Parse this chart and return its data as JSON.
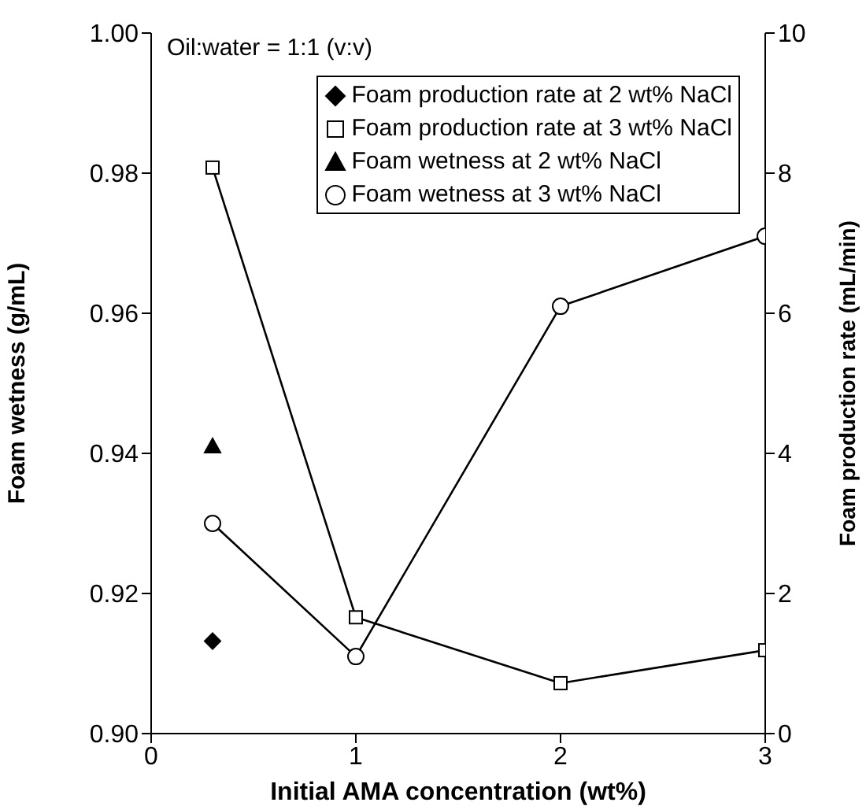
{
  "chart_data": {
    "type": "scatter",
    "xlabel": "Initial AMA concentration (wt%)",
    "ylabel": "Foam wetness (g/mL)",
    "y2label": "Foam production rate (mL/min)",
    "annotations": [
      "Oil:water = 1:1 (v:v)"
    ],
    "xlim": [
      0,
      3
    ],
    "xticks": [
      0,
      1,
      2,
      3
    ],
    "ylim": [
      0.9,
      1.0
    ],
    "yticks": [
      {
        "value": 0.9,
        "label": "0.90"
      },
      {
        "value": 0.92,
        "label": "0.92"
      },
      {
        "value": 0.94,
        "label": "0.94"
      },
      {
        "value": 0.96,
        "label": "0.96"
      },
      {
        "value": 0.98,
        "label": "0.98"
      },
      {
        "value": 1.0,
        "label": "1.00"
      }
    ],
    "y2lim": [
      0,
      10
    ],
    "y2ticks": [
      0,
      2,
      4,
      6,
      8,
      10
    ],
    "grid": false,
    "legend": "top right",
    "series": [
      {
        "name": "Foam production rate at 2 wt% NaCl",
        "axis": "y2",
        "marker": "diamond",
        "color": "#000000",
        "x": [
          0.3
        ],
        "values": [
          1.32
        ]
      },
      {
        "name": "Foam production rate at 3 wt% NaCl",
        "type": "line",
        "axis": "y2",
        "marker": "square",
        "color": "#000000",
        "x": [
          0.3,
          1,
          2,
          3
        ],
        "values": [
          8.08,
          1.66,
          0.72,
          1.19
        ]
      },
      {
        "name": "Foam wetness at 2 wt% NaCl",
        "axis": "y",
        "marker": "triangle",
        "color": "#000000",
        "x": [
          0.3
        ],
        "values": [
          0.941
        ]
      },
      {
        "name": "Foam wetness at 3 wt% NaCl",
        "type": "line",
        "axis": "y",
        "marker": "circle",
        "color": "#000000",
        "x": [
          0.3,
          1,
          2,
          3
        ],
        "values": [
          0.93,
          0.911,
          0.961,
          0.971
        ]
      }
    ]
  }
}
